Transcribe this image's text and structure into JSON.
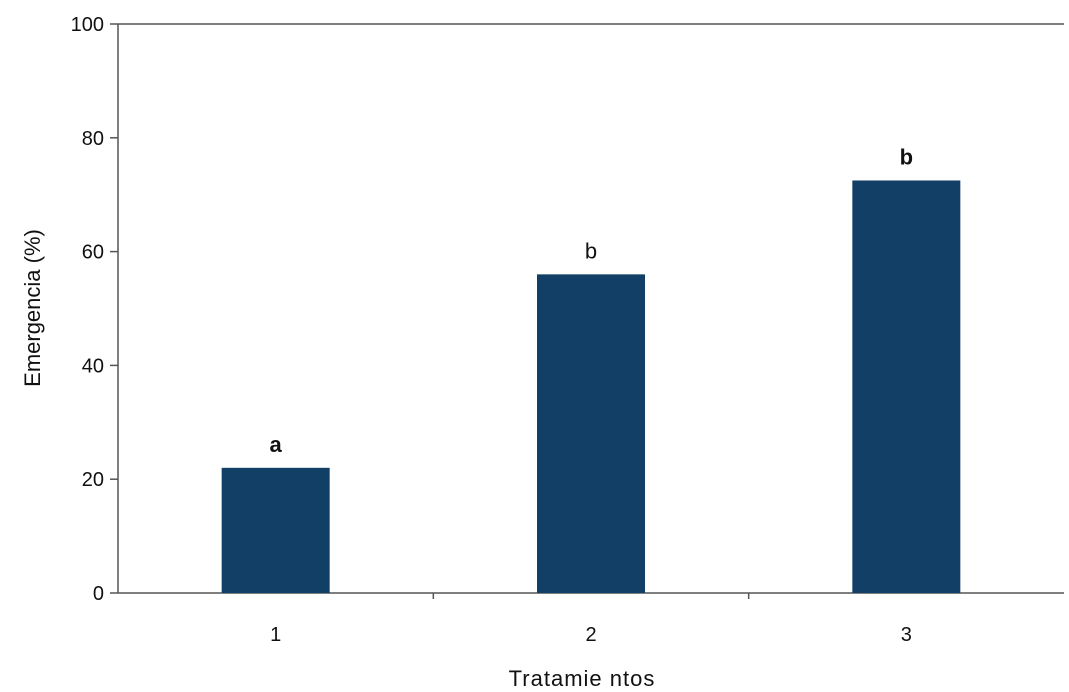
{
  "chart_data": {
    "type": "bar",
    "title": "",
    "xlabel": "Tratamie ntos",
    "ylabel": "Emergencia (%)",
    "categories": [
      "1",
      "2",
      "3"
    ],
    "values": [
      22,
      56,
      72.5
    ],
    "data_labels": [
      "a",
      "b",
      "b"
    ],
    "data_labels_bold": [
      true,
      false,
      true
    ],
    "ylim": [
      0,
      100
    ],
    "yticks": [
      "0",
      "20",
      "40",
      "60",
      "80",
      "100"
    ],
    "grid": false,
    "legend": "none",
    "bar_color": "#123f66"
  }
}
